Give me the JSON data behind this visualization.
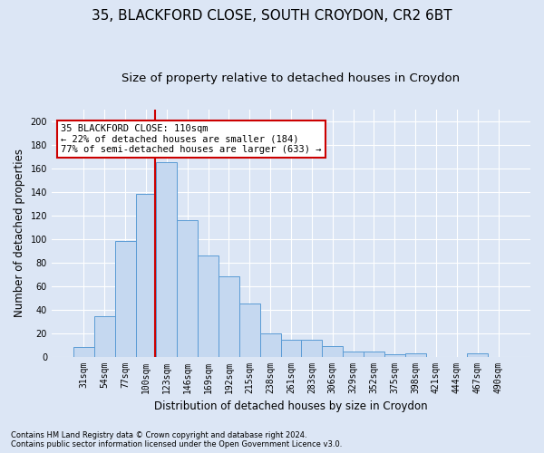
{
  "title": "35, BLACKFORD CLOSE, SOUTH CROYDON, CR2 6BT",
  "subtitle": "Size of property relative to detached houses in Croydon",
  "xlabel": "Distribution of detached houses by size in Croydon",
  "ylabel": "Number of detached properties",
  "footnote1": "Contains HM Land Registry data © Crown copyright and database right 2024.",
  "footnote2": "Contains public sector information licensed under the Open Government Licence v3.0.",
  "bar_labels": [
    "31sqm",
    "54sqm",
    "77sqm",
    "100sqm",
    "123sqm",
    "146sqm",
    "169sqm",
    "192sqm",
    "215sqm",
    "238sqm",
    "261sqm",
    "283sqm",
    "306sqm",
    "329sqm",
    "352sqm",
    "375sqm",
    "398sqm",
    "421sqm",
    "444sqm",
    "467sqm",
    "490sqm"
  ],
  "bar_values": [
    8,
    34,
    98,
    138,
    165,
    116,
    86,
    68,
    45,
    20,
    14,
    14,
    9,
    4,
    4,
    2,
    3,
    0,
    0,
    3,
    0
  ],
  "bar_color": "#c5d8f0",
  "bar_edge_color": "#5a9bd5",
  "annotation_text": "35 BLACKFORD CLOSE: 110sqm\n← 22% of detached houses are smaller (184)\n77% of semi-detached houses are larger (633) →",
  "annotation_box_color": "#ffffff",
  "annotation_box_edge": "#cc0000",
  "vline_color": "#cc0000",
  "ylim": [
    0,
    210
  ],
  "yticks": [
    0,
    20,
    40,
    60,
    80,
    100,
    120,
    140,
    160,
    180,
    200
  ],
  "background_color": "#dce6f5",
  "plot_bg_color": "#dce6f5",
  "grid_color": "#ffffff",
  "title_fontsize": 11,
  "subtitle_fontsize": 9.5,
  "axis_label_fontsize": 8.5,
  "tick_fontsize": 7
}
